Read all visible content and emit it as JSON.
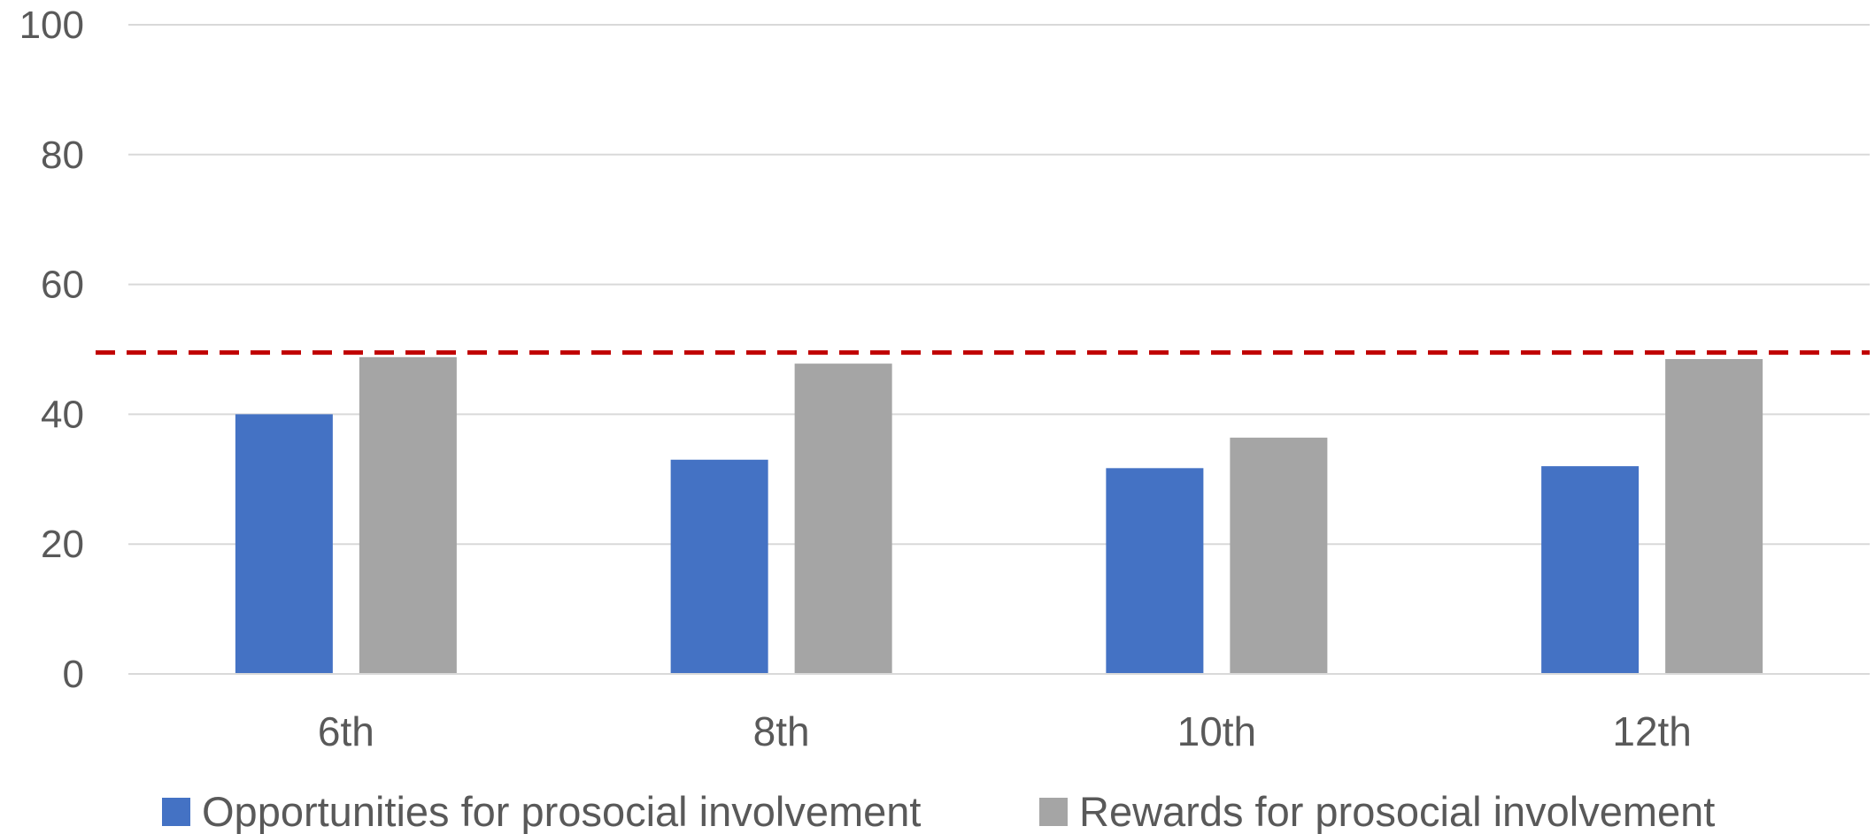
{
  "chart_data": {
    "type": "bar",
    "categories": [
      "6th",
      "8th",
      "10th",
      "12th"
    ],
    "series": [
      {
        "name": "Opportunities for prosocial involvement",
        "values": [
          40,
          33,
          31.7,
          32
        ],
        "color": "#4472C4"
      },
      {
        "name": "Rewards for prosocial involvement",
        "values": [
          48.8,
          47.8,
          36.4,
          48.5
        ],
        "color": "#A5A5A5"
      }
    ],
    "y_ticks": [
      "0",
      "20",
      "40",
      "60",
      "80",
      "100"
    ],
    "ylim": [
      0,
      100
    ],
    "reference_line": {
      "value": 49.5,
      "color": "#C00000",
      "style": "dashed"
    },
    "grid": true,
    "legend_position": "bottom",
    "title": "",
    "xlabel": "",
    "ylabel": ""
  }
}
